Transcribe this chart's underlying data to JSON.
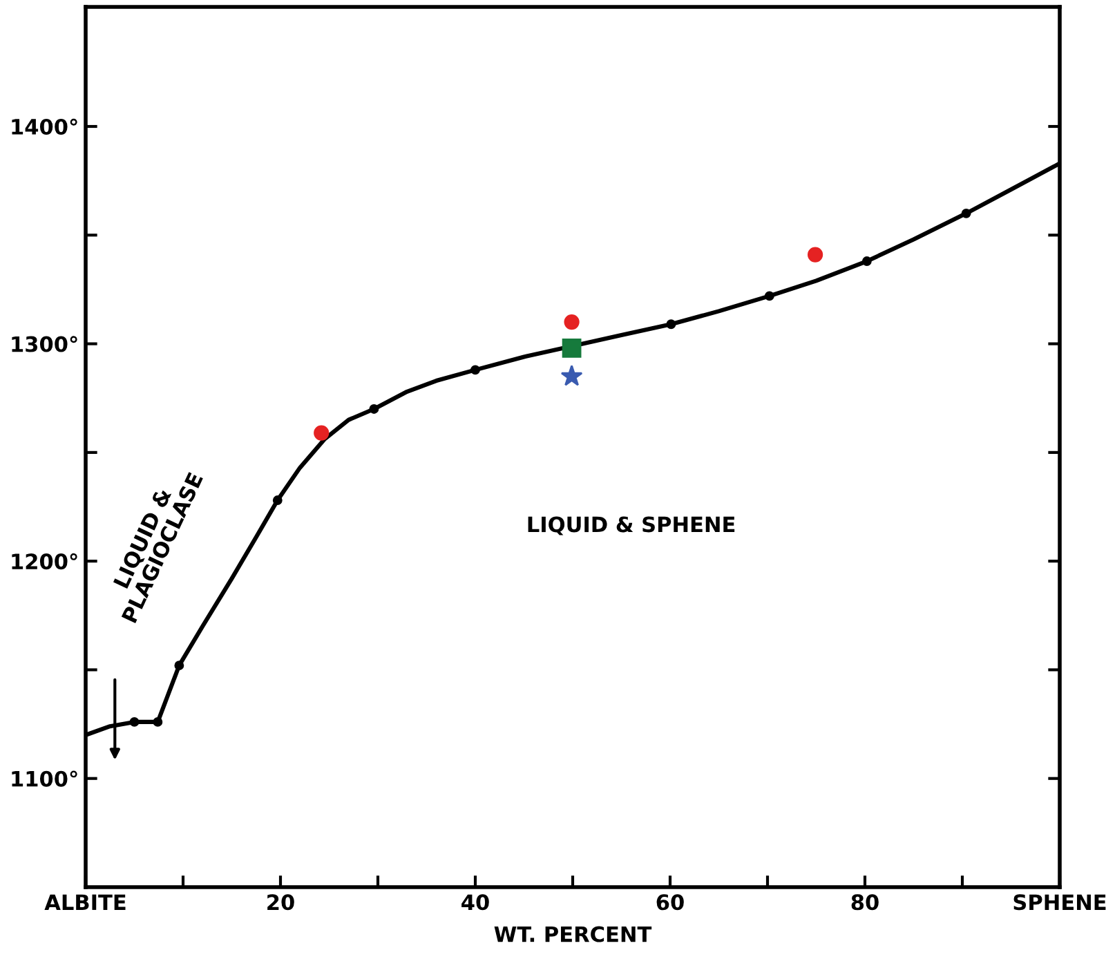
{
  "chart_data": {
    "type": "line",
    "xlabel": "WT. PERCENT",
    "xlim": [
      0,
      100
    ],
    "ylim": [
      1050,
      1455
    ],
    "xticks": [
      {
        "value": 0,
        "label": "ALBITE"
      },
      {
        "value": 10,
        "label": null
      },
      20,
      {
        "value": 30,
        "label": null
      },
      40,
      {
        "value": 50,
        "label": null
      },
      60,
      {
        "value": 70,
        "label": null
      },
      80,
      {
        "value": 90,
        "label": null
      },
      {
        "value": 100,
        "label": "SPHENE"
      }
    ],
    "yticks": [
      {
        "value": 1100,
        "label": "1100°"
      },
      {
        "value": 1150,
        "label": null
      },
      {
        "value": 1200,
        "label": "1200°"
      },
      {
        "value": 1250,
        "label": null
      },
      {
        "value": 1300,
        "label": "1300°"
      },
      {
        "value": 1350,
        "label": null
      },
      {
        "value": 1400,
        "label": "1400°"
      }
    ],
    "grid": false,
    "legend": false,
    "series": [
      {
        "type": "line",
        "color": "#000000",
        "marker": "none",
        "x": [
          0,
          2.5,
          5,
          7.4,
          9.6,
          12,
          15,
          17.5,
          19.7,
          22,
          24.5,
          27,
          29.6,
          33,
          36,
          40,
          45,
          50,
          55,
          60.1,
          65,
          70.2,
          75,
          80.2,
          85,
          90.4,
          95,
          100
        ],
        "values": [
          1120,
          1124,
          1126,
          1126,
          1152,
          1170,
          1192,
          1211,
          1228,
          1243,
          1256,
          1265,
          1270,
          1278,
          1283,
          1288,
          1294,
          1299,
          1304,
          1309,
          1315,
          1322,
          1329,
          1338,
          1348,
          1360,
          1371,
          1383
        ]
      },
      {
        "type": "scatter",
        "color": "#000000",
        "marker": "circle",
        "x": [
          5,
          7.4,
          9.6,
          19.7,
          29.6,
          40,
          60.1,
          70.2,
          80.2,
          90.4
        ],
        "values": [
          1126,
          1126,
          1152,
          1228,
          1270,
          1288,
          1309,
          1322,
          1338,
          1360
        ]
      },
      {
        "type": "scatter",
        "color": "#e52222",
        "marker": "circle",
        "x": [
          24.2,
          49.9,
          74.9
        ],
        "values": [
          1259,
          1310,
          1341
        ]
      },
      {
        "type": "scatter",
        "color": "#167a3c",
        "marker": "square",
        "x": [
          49.9
        ],
        "values": [
          1298
        ]
      },
      {
        "type": "scatter",
        "color": "#3a5bb0",
        "marker": "star",
        "x": [
          49.9
        ],
        "values": [
          1285
        ]
      }
    ],
    "annotations": [
      "LIQUID & SPHENE",
      "LIQUID &\nPLAGIOCLASE"
    ]
  }
}
